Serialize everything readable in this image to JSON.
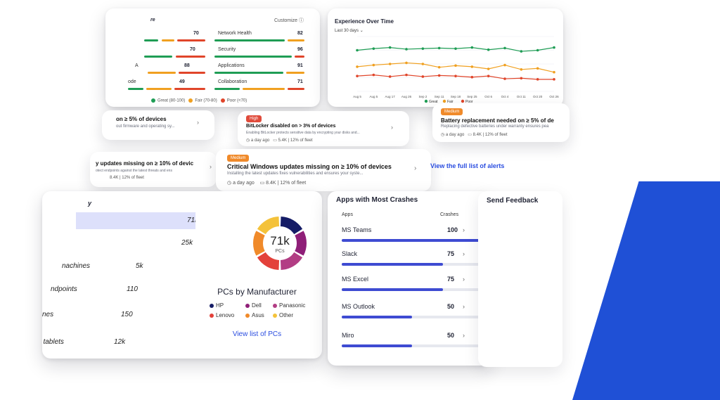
{
  "score": {
    "title_fragment": "re",
    "top_right": "Customize",
    "rows_left": [
      {
        "label": "",
        "value": "70"
      },
      {
        "label": "",
        "value": "70"
      },
      {
        "label": "A",
        "value": "88"
      },
      {
        "label": "ode",
        "value": "49"
      }
    ],
    "rows_right": [
      {
        "label": "Network Health",
        "value": "82"
      },
      {
        "label": "Security",
        "value": "96"
      },
      {
        "label": "Applications",
        "value": "91"
      },
      {
        "label": "Collaboration",
        "value": "71"
      }
    ],
    "legend": [
      "Great (80-100)",
      "Fair (70-80)",
      "Poor (<70)"
    ],
    "colors": {
      "green": "#1f9d55",
      "orange": "#f0a020",
      "red": "#e0452a"
    }
  },
  "experience": {
    "title": "Experience Over Time",
    "range": "Last 30 days"
  },
  "chart_data": {
    "type": "line",
    "title": "Experience Over Time",
    "x": [
      "Aug 5",
      "Aug 5",
      "Aug 17",
      "Aug 26",
      "Sep 2",
      "Sep 11",
      "Sep 18",
      "Sep 25",
      "Oct 6",
      "Oct 4",
      "Oct 11",
      "Oct 20",
      "Oct 26"
    ],
    "ylim": [
      0,
      100
    ],
    "series": [
      {
        "name": "Great",
        "color": "#1f9d55",
        "values": [
          75,
          78,
          80,
          77,
          78,
          79,
          78,
          80,
          76,
          79,
          73,
          75,
          80
        ]
      },
      {
        "name": "Fair",
        "color": "#f0a020",
        "values": [
          45,
          48,
          50,
          52,
          50,
          44,
          47,
          45,
          41,
          48,
          40,
          42,
          35
        ]
      },
      {
        "name": "Poor",
        "color": "#e0452a",
        "values": [
          28,
          30,
          27,
          30,
          27,
          29,
          28,
          26,
          28,
          23,
          24,
          22,
          22
        ]
      }
    ]
  },
  "alerts": {
    "a_left": {
      "title": "on ≥ 5% of devices",
      "sub": "out firmware and operating sy..."
    },
    "a_center": {
      "badge": "High",
      "title": "BitLocker disabled on > 3% of devices",
      "sub": "Enabling BitLocker protects sensitive data by encrypting your disks and...",
      "time": "a day ago",
      "count": "5.4K | 12% of fleet"
    },
    "a_right": {
      "badge": "Medium",
      "title": "Battery replacement needed on ≥ 5% of de",
      "sub": "Replacing defective batteries under warranty ensures pea",
      "time": "a day ago",
      "count": "8.4K | 12% of fleet"
    },
    "a_bottom_left": {
      "title": "y updates missing on ≥ 10% of devic",
      "sub": "otect endpoints against the latest threats and ens",
      "count": "8.4K | 12% of fleet"
    },
    "a_main": {
      "badge": "Medium",
      "title": "Critical Windows updates missing on ≥ 10% of devices",
      "sub": "Installing the latest updates fixes vulnerabilities and ensures your syste...",
      "time": "a day ago",
      "count": "8.4K | 12% of fleet"
    },
    "view_all": "View the full list of alerts"
  },
  "devices": {
    "title": "y",
    "rows": [
      {
        "name": "",
        "value": "71k"
      },
      {
        "name": "",
        "value": "25k"
      },
      {
        "name": "nachines",
        "value": "5k"
      },
      {
        "name": "ndpoints",
        "value": "110"
      },
      {
        "name": "nes",
        "value": "150"
      },
      {
        "name": "& tablets",
        "value": "12k"
      }
    ],
    "donut": {
      "center_value": "71k",
      "center_label": "PCs",
      "title": "PCs by Manufacturer",
      "legend": [
        {
          "name": "HP",
          "color": "#151c66"
        },
        {
          "name": "Dell",
          "color": "#8f1f78"
        },
        {
          "name": "Panasonic",
          "color": "#b23d84"
        },
        {
          "name": "Lenovo",
          "color": "#e3413a"
        },
        {
          "name": "Asus",
          "color": "#f08a2a"
        },
        {
          "name": "Other",
          "color": "#f4c23a"
        }
      ]
    },
    "view_link": "View list of PCs"
  },
  "crashes": {
    "title": "Apps with Most Crashes",
    "col_apps": "Apps",
    "col_crashes": "Crashes",
    "rows": [
      {
        "name": "MS Teams",
        "value": "100",
        "fill": 1.0
      },
      {
        "name": "Slack",
        "value": "75",
        "fill": 0.72
      },
      {
        "name": "MS Excel",
        "value": "75",
        "fill": 0.72
      },
      {
        "name": "MS Outlook",
        "value": "50",
        "fill": 0.5
      },
      {
        "name": "Miro",
        "value": "50",
        "fill": 0.5
      }
    ]
  },
  "feedback": {
    "title": "Send Feedback"
  }
}
